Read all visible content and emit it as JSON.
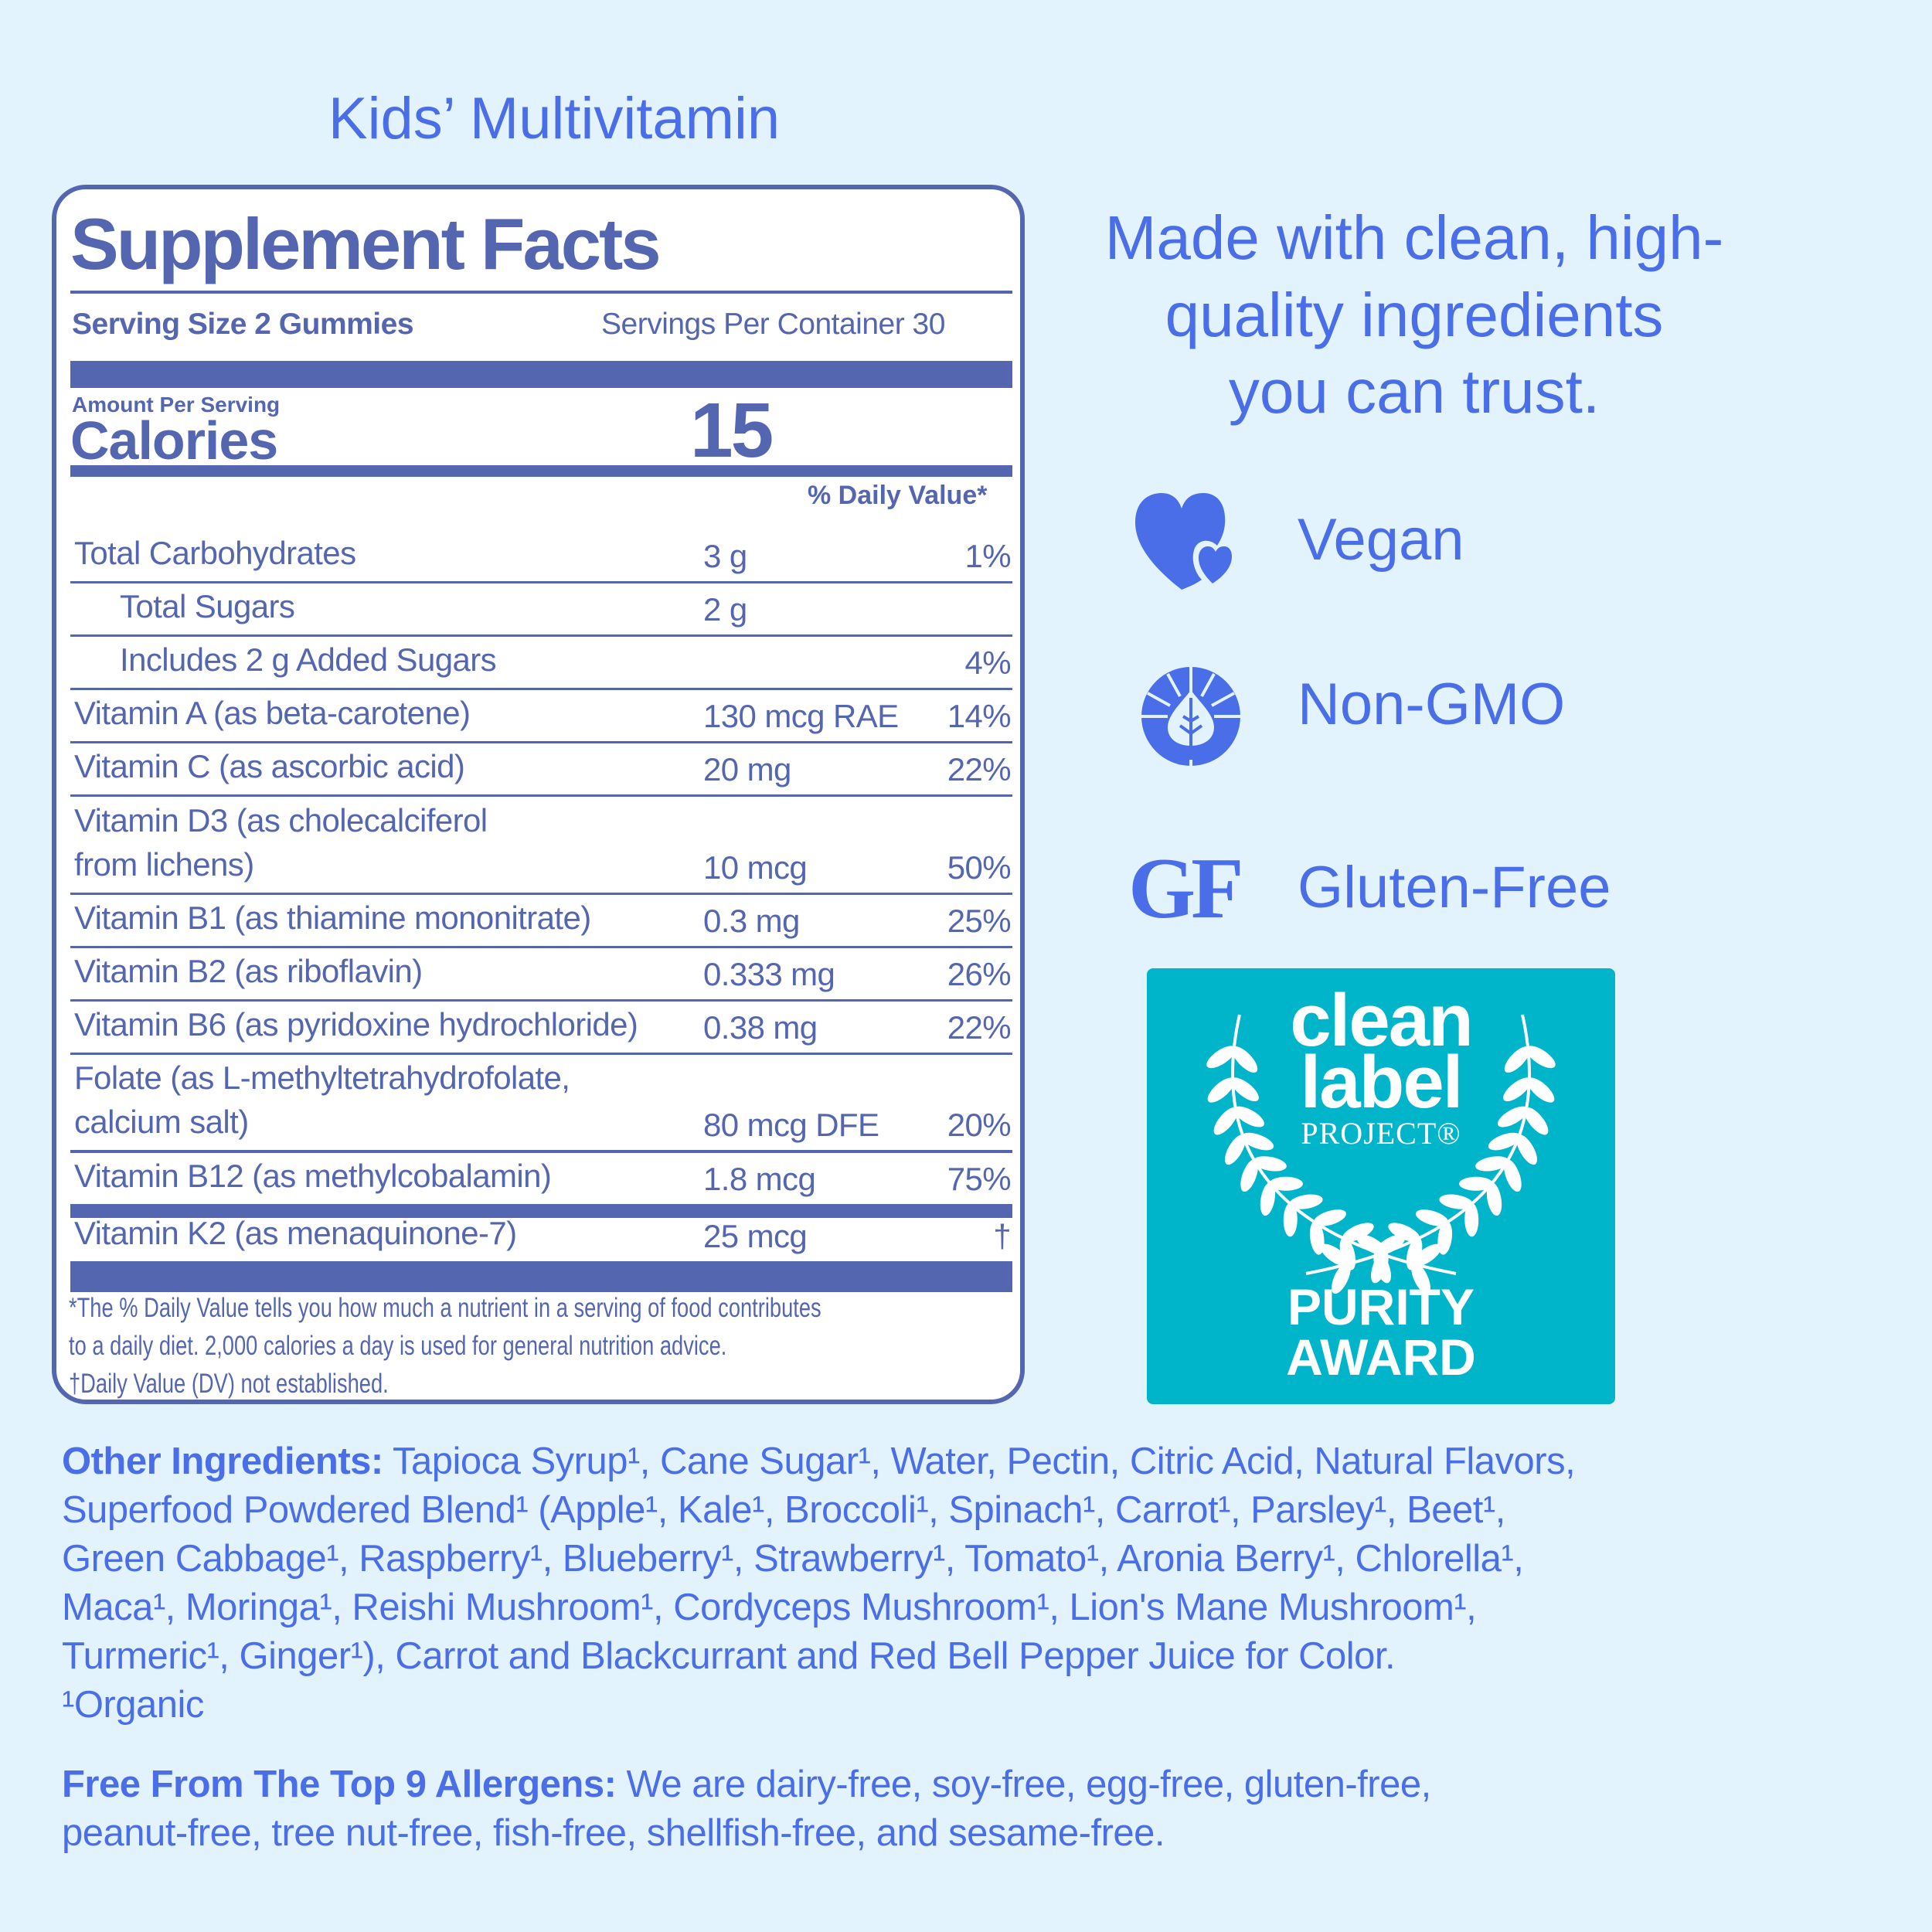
{
  "colors": {
    "background": "#e2f3fd",
    "label": "#5566b0",
    "accent": "#4a6ee8",
    "badge": "#00b5ca"
  },
  "product_title": "Kids’ Multivitamin",
  "facts": {
    "title": "Supplement Facts",
    "serving_size": "Serving Size 2 Gummies",
    "servings_per_container": "Servings Per Container 30",
    "amount_per_serving": "Amount Per Serving",
    "calories_label": "Calories",
    "calories_value": "15",
    "dv_header": "% Daily Value*",
    "rows": [
      {
        "name": [
          "Total Carbohydrates"
        ],
        "amount": "3 g",
        "dv": "1%"
      },
      {
        "name": [
          "Total Sugars"
        ],
        "amount": "2 g",
        "dv": "",
        "indent": true
      },
      {
        "name": [
          "Includes 2 g Added Sugars"
        ],
        "amount": "",
        "dv": "4%",
        "indent": true
      },
      {
        "name": [
          "Vitamin A (as beta-carotene)"
        ],
        "amount": "130 mcg RAE",
        "dv": "14%"
      },
      {
        "name": [
          "Vitamin C (as ascorbic acid)"
        ],
        "amount": "20 mg",
        "dv": "22%"
      },
      {
        "name": [
          "Vitamin D3 (as cholecalciferol",
          "from lichens)"
        ],
        "amount": "10 mcg",
        "dv": "50%"
      },
      {
        "name": [
          "Vitamin B1 (as thiamine mononitrate)"
        ],
        "amount": "0.3 mg",
        "dv": "25%"
      },
      {
        "name": [
          "Vitamin B2 (as riboflavin)"
        ],
        "amount": "0.333 mg",
        "dv": "26%"
      },
      {
        "name": [
          "Vitamin B6 (as pyridoxine hydrochloride)"
        ],
        "amount": "0.38 mg",
        "dv": "22%"
      },
      {
        "name": [
          "Folate (as L-methyltetrahydrofolate,",
          "calcium salt)"
        ],
        "amount": "80 mcg DFE",
        "dv": "20%"
      },
      {
        "name": [
          "Vitamin B12 (as methylcobalamin)"
        ],
        "amount": "1.8 mcg",
        "dv": "75%"
      },
      {
        "name": [
          "Vitamin K2 (as menaquinone-7)"
        ],
        "amount": "25 mcg",
        "dv": "†"
      }
    ],
    "footnote": [
      "*The % Daily Value tells you how much a nutrient in a serving of food contributes",
      "to a daily diet. 2,000 calories a day is used for general nutrition advice.",
      "†Daily Value (DV) not established."
    ]
  },
  "headline": [
    "Made with clean, high-",
    "quality ingredients",
    "you can trust."
  ],
  "claims": [
    {
      "label": "Vegan",
      "icon": "hearts-icon"
    },
    {
      "label": "Non-GMO",
      "icon": "leaf-sun-icon"
    },
    {
      "label": "Gluten-Free",
      "icon": "gf-icon",
      "icon_text": "GF"
    }
  ],
  "badge": {
    "line1": "clean",
    "line2": "label",
    "line3": "PROJECT®",
    "award1": "PURITY",
    "award2": "AWARD"
  },
  "ingredients": {
    "label": "Other Ingredients:",
    "lines": [
      " Tapioca Syrup¹, Cane Sugar¹, Water, Pectin, Citric Acid, Natural Flavors,",
      "Superfood Powdered Blend¹ (Apple¹, Kale¹, Broccoli¹, Spinach¹, Carrot¹, Parsley¹, Beet¹,",
      "Green Cabbage¹, Raspberry¹, Blueberry¹, Strawberry¹, Tomato¹, Aronia Berry¹, Chlorella¹,",
      "Maca¹, Moringa¹, Reishi Mushroom¹, Cordyceps Mushroom¹, Lion's Mane Mushroom¹,",
      "Turmeric¹, Ginger¹), Carrot and Blackcurrant and Red Bell Pepper Juice for Color.",
      "¹Organic"
    ]
  },
  "allergens": {
    "label": "Free From The Top 9 Allergens:",
    "lines": [
      " We are dairy-free, soy-free, egg-free, gluten-free,",
      "peanut-free, tree nut-free, fish-free, shellfish-free, and sesame-free."
    ]
  }
}
